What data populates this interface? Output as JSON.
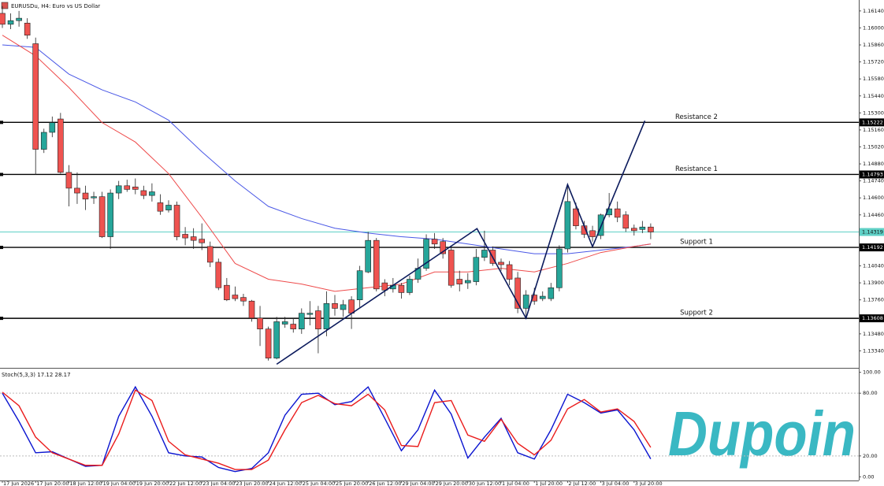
{
  "chart_data": [
    {
      "type": "candlestick",
      "title": "EURUSDu, H4: Euro vs US Dollar",
      "categories": [
        "17 Jun 2026",
        null,
        null,
        null,
        "17 Jun 20:00",
        null,
        null,
        null,
        "18 Jun 12:00",
        null,
        null,
        null,
        "19 Jun 04:00",
        null,
        null,
        null,
        "19 Jun 20:00",
        null,
        null,
        null,
        "22 Jun 12:00",
        null,
        null,
        null,
        "23 Jun 04:00",
        null,
        null,
        null,
        "23 Jun 20:00",
        null,
        null,
        null,
        "24 Jun 12:00",
        null,
        null,
        null,
        "25 Jun 04:00",
        null,
        null,
        null,
        "25 Jun 20:00",
        null,
        null,
        null,
        "26 Jun 12:00",
        null,
        null,
        null,
        "29 Jun 04:00",
        null,
        null,
        null,
        "29 Jun 20:00",
        null,
        null,
        null,
        "30 Jun 12:00",
        null,
        null,
        null,
        "1 Jul 04:00",
        null,
        null,
        null,
        "1 Jul 20:00",
        null,
        null,
        null,
        "2 Jul 12:00",
        null,
        null,
        null,
        "3 Jul 04:00",
        null,
        null,
        null,
        "3 Jul 20:00",
        null,
        null
      ],
      "open": [
        1.1612,
        1.1603,
        1.1606,
        1.1604,
        1.1587,
        1.15,
        1.1514,
        1.1525,
        1.1481,
        1.1468,
        1.1464,
        1.146,
        1.1461,
        1.1428,
        1.1464,
        1.147,
        1.1469,
        1.1466,
        1.1462,
        1.1456,
        1.145,
        1.1454,
        1.143,
        1.1428,
        1.1426,
        1.142,
        1.1407,
        1.1388,
        1.138,
        1.1378,
        1.1375,
        1.1361,
        1.1352,
        1.1328,
        1.1356,
        1.1356,
        1.1352,
        1.1364,
        1.1367,
        1.1352,
        1.1373,
        1.1368,
        1.1376,
        1.1376,
        1.1399,
        1.1425,
        1.139,
        1.1385,
        1.1388,
        1.1382,
        1.1393,
        1.1402,
        1.1426,
        1.1424,
        1.1417,
        1.1393,
        1.139,
        1.1391,
        1.1411,
        1.1417,
        1.1407,
        1.1405,
        1.1394,
        1.1369,
        1.138,
        1.1377,
        1.1377,
        1.1386,
        1.1418,
        1.1451,
        1.1437,
        1.1433,
        1.1429,
        1.1446,
        1.1451,
        1.1446,
        1.1435,
        1.1434,
        1.1436
      ],
      "high": [
        1.1618,
        1.1612,
        1.1614,
        1.1608,
        1.1592,
        1.1517,
        1.1527,
        1.153,
        1.1487,
        1.1481,
        1.147,
        1.1465,
        1.1465,
        1.1467,
        1.1474,
        1.1475,
        1.1476,
        1.147,
        1.1472,
        1.1463,
        1.1458,
        1.1457,
        1.1436,
        1.1435,
        1.1439,
        1.1424,
        1.141,
        1.1394,
        1.1387,
        1.1381,
        1.1376,
        1.1371,
        1.1354,
        1.1362,
        1.1362,
        1.1361,
        1.1369,
        1.1375,
        1.1371,
        1.1383,
        1.138,
        1.1376,
        1.1379,
        1.1404,
        1.1432,
        1.1427,
        1.1393,
        1.1394,
        1.139,
        1.1396,
        1.141,
        1.143,
        1.1431,
        1.1427,
        1.142,
        1.14,
        1.1398,
        1.1418,
        1.1433,
        1.142,
        1.141,
        1.1408,
        1.1399,
        1.1384,
        1.1386,
        1.1383,
        1.139,
        1.1421,
        1.147,
        1.1456,
        1.1441,
        1.1437,
        1.1447,
        1.1464,
        1.1457,
        1.1449,
        1.1438,
        1.1441,
        1.1439
      ],
      "low": [
        1.16,
        1.1599,
        1.1601,
        1.1591,
        1.1479,
        1.1497,
        1.151,
        1.148,
        1.1453,
        1.1455,
        1.145,
        1.1455,
        1.1427,
        1.1418,
        1.1459,
        1.1465,
        1.1463,
        1.1459,
        1.1457,
        1.1446,
        1.1448,
        1.1425,
        1.1421,
        1.1418,
        1.1417,
        1.1403,
        1.1384,
        1.1375,
        1.1375,
        1.1371,
        1.1358,
        1.1338,
        1.1326,
        1.1327,
        1.1353,
        1.1349,
        1.1348,
        1.1355,
        1.1332,
        1.1346,
        1.1363,
        1.1362,
        1.1352,
        1.137,
        1.1398,
        1.1383,
        1.1379,
        1.1382,
        1.1377,
        1.138,
        1.139,
        1.14,
        1.1418,
        1.141,
        1.1386,
        1.1383,
        1.1385,
        1.1388,
        1.1408,
        1.1404,
        1.14,
        1.1388,
        1.1365,
        1.1362,
        1.1372,
        1.1375,
        1.1375,
        1.1383,
        1.1415,
        1.1434,
        1.1427,
        1.1424,
        1.1426,
        1.1444,
        1.144,
        1.1432,
        1.1429,
        1.1431,
        1.1426
      ],
      "close": [
        1.1603,
        1.1606,
        1.1608,
        1.1594,
        1.15,
        1.1514,
        1.1522,
        1.1481,
        1.1468,
        1.1464,
        1.1459,
        1.1461,
        1.1428,
        1.1464,
        1.147,
        1.1467,
        1.1467,
        1.1462,
        1.1465,
        1.1449,
        1.1454,
        1.1428,
        1.1427,
        1.1425,
        1.1423,
        1.1407,
        1.1386,
        1.1376,
        1.1377,
        1.1375,
        1.1361,
        1.1352,
        1.1328,
        1.1358,
        1.1358,
        1.1352,
        1.1365,
        1.1365,
        1.1352,
        1.1373,
        1.1369,
        1.1372,
        1.1365,
        1.14,
        1.1425,
        1.1385,
        1.1384,
        1.1388,
        1.1382,
        1.1393,
        1.1402,
        1.1426,
        1.1422,
        1.1414,
        1.1388,
        1.1389,
        1.1392,
        1.1411,
        1.1417,
        1.1406,
        1.1405,
        1.1393,
        1.1369,
        1.138,
        1.1375,
        1.1379,
        1.1386,
        1.1418,
        1.1457,
        1.1437,
        1.143,
        1.1428,
        1.1446,
        1.1451,
        1.1444,
        1.1435,
        1.1433,
        1.1436,
        1.14319
      ],
      "up_color": "#26a69a",
      "down_color": "#ef5350",
      "ma": [
        {
          "color": "#4a58e6",
          "x": [
            0,
            4,
            8,
            12,
            16,
            20,
            24,
            28,
            32,
            36,
            40,
            44,
            48,
            52,
            56,
            60,
            64,
            68,
            72,
            76,
            78
          ],
          "values": [
            1.1586,
            1.1584,
            1.1562,
            1.1549,
            1.1539,
            1.1524,
            1.1498,
            1.1474,
            1.1453,
            1.1443,
            1.1435,
            1.1431,
            1.1428,
            1.1426,
            1.1422,
            1.1418,
            1.1414,
            1.1414,
            1.1417,
            1.142,
            1.1422
          ]
        },
        {
          "color": "#ee4b4b",
          "x": [
            0,
            4,
            8,
            12,
            16,
            20,
            24,
            28,
            32,
            36,
            40,
            44,
            48,
            52,
            56,
            60,
            64,
            68,
            72,
            76,
            78
          ],
          "values": [
            1.1594,
            1.1577,
            1.1551,
            1.1522,
            1.1506,
            1.148,
            1.1444,
            1.1406,
            1.1393,
            1.1389,
            1.1383,
            1.1386,
            1.1389,
            1.1399,
            1.1399,
            1.1402,
            1.1399,
            1.1406,
            1.1415,
            1.142,
            1.1422
          ]
        }
      ],
      "trendline": {
        "color": "#0b1a5c",
        "x": [
          33,
          57.1,
          63,
          68,
          71,
          77.3
        ],
        "y": [
          1.1323,
          1.14347,
          1.13609,
          1.1471,
          1.14198,
          1.15235
        ]
      },
      "levels": [
        {
          "name": "Resistance 2",
          "value": 1.15222,
          "label": "1.15222"
        },
        {
          "name": "Resistance 1",
          "value": 1.14793,
          "label": "1.14793"
        },
        {
          "name": "Support 1",
          "value": 1.14192,
          "label": "1.14192"
        },
        {
          "name": "Support 2",
          "value": 1.13608,
          "label": "1.13608"
        }
      ],
      "bid": {
        "value": 1.14319,
        "label": "1.14319",
        "color": "#5fd0c6"
      },
      "ylim": [
        1.132,
        1.1623
      ],
      "yticks": [
        {
          "value": 1.1614,
          "label": "1.16140"
        },
        {
          "value": 1.16,
          "label": "1.16000"
        },
        {
          "value": 1.1586,
          "label": "1.15860"
        },
        {
          "value": 1.1572,
          "label": "1.15720"
        },
        {
          "value": 1.1558,
          "label": "1.15580"
        },
        {
          "value": 1.1544,
          "label": "1.15440"
        },
        {
          "value": 1.153,
          "label": "1.15300"
        },
        {
          "value": 1.1516,
          "label": "1.15160"
        },
        {
          "value": 1.1502,
          "label": "1.15020"
        },
        {
          "value": 1.1488,
          "label": "1.14880"
        },
        {
          "value": 1.1474,
          "label": "1.14740"
        },
        {
          "value": 1.146,
          "label": "1.14600"
        },
        {
          "value": 1.1446,
          "label": "1.14460"
        },
        {
          "value": 1.1404,
          "label": "1.14040"
        },
        {
          "value": 1.139,
          "label": "1.13900"
        },
        {
          "value": 1.1376,
          "label": "1.13760"
        },
        {
          "value": 1.1348,
          "label": "1.13480"
        },
        {
          "value": 1.1334,
          "label": "1.13340"
        }
      ],
      "grid": false
    },
    {
      "type": "line",
      "label": "Stoch(5,3,3) 17.12 28.17",
      "x": [
        0,
        2,
        4,
        6,
        8,
        10,
        12,
        14,
        16,
        18,
        20,
        22,
        24,
        26,
        28,
        30,
        32,
        34,
        36,
        38,
        40,
        42,
        44,
        46,
        48,
        50,
        52,
        54,
        56,
        58,
        60,
        62,
        64,
        66,
        68,
        70,
        72,
        74,
        76,
        78
      ],
      "series": [
        {
          "color": "#0a14d0",
          "values": [
            80,
            53,
            23,
            24,
            17,
            10,
            11,
            58,
            86,
            58,
            23,
            20,
            19,
            9,
            5,
            8,
            23,
            59,
            79,
            80,
            69,
            72,
            86,
            56,
            25,
            45,
            83,
            60,
            18,
            38,
            56,
            23,
            17,
            45,
            79,
            71,
            61,
            64,
            45,
            17.12
          ]
        },
        {
          "color": "#ea1c1c",
          "values": [
            81,
            68,
            38,
            23,
            17,
            11,
            11,
            41,
            83,
            73,
            34,
            21,
            17,
            13,
            7,
            7,
            16,
            45,
            71,
            78,
            70,
            68,
            79,
            64,
            30,
            29,
            71,
            73,
            40,
            34,
            55,
            32,
            21,
            35,
            65,
            74,
            62,
            65,
            53,
            28.17
          ]
        }
      ],
      "levels": [
        80,
        20
      ],
      "ylim": [
        -3.5,
        103.5
      ],
      "yticks": [
        {
          "value": 100,
          "label": "100.00"
        },
        {
          "value": 80,
          "label": "80.00"
        },
        {
          "value": 20,
          "label": "20.00"
        },
        {
          "value": 0,
          "label": "0.00"
        }
      ],
      "grid": false
    }
  ],
  "watermark": "Dupoin"
}
